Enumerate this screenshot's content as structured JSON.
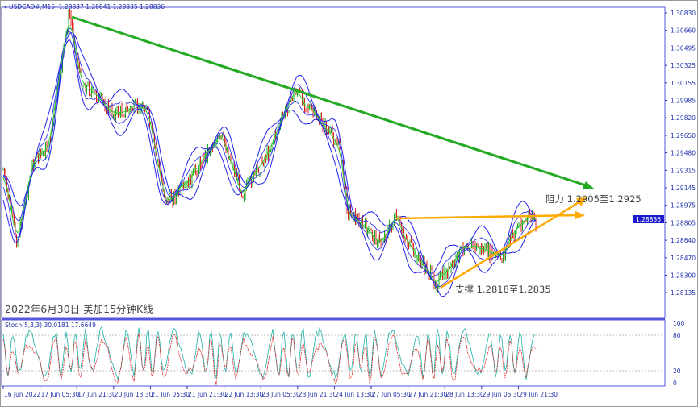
{
  "header": {
    "symbol": "USDCAD#,M15",
    "ohlc": "1.28837 1.28841 1.28835 1.28836"
  },
  "chart_data": {
    "type": "candlestick",
    "title": "2022年6月30日 美加15分钟K线",
    "symbol": "USDCAD#",
    "timeframe": "M15",
    "current_price": "1.28836",
    "y_ticks": [
      "1.30830",
      "1.30660",
      "1.30495",
      "1.30325",
      "1.30155",
      "1.29985",
      "1.29820",
      "1.29650",
      "1.29480",
      "1.29315",
      "1.29145",
      "1.28975",
      "1.28805",
      "1.28640",
      "1.28470",
      "1.28300",
      "1.28135"
    ],
    "x_ticks": [
      "16 Jun 2022",
      "17 Jun 05:30",
      "17 Jun 21:30",
      "20 Jun 13:30",
      "21 Jun 05:30",
      "21 Jun 21:30",
      "22 Jun 13:30",
      "23 Jun 05:30",
      "23 Jun 21:30",
      "24 Jun 13:30",
      "27 Jun 05:30",
      "27 Jun 21:30",
      "28 Jun 13:30",
      "29 Jun 05:30",
      "29 Jun 21:30"
    ],
    "annotations": {
      "resistance": "阻力 1.2905至1.2925",
      "support": "支撑 1.2818至1.2835"
    },
    "indicator": {
      "label": "Stoch(5,3,3) 30.0181 17.6649",
      "levels": [
        "100",
        "80",
        "20",
        "0"
      ]
    },
    "colors": {
      "up": "#22aa22",
      "down": "#dd2222",
      "bands": "#2222ee",
      "trend": "#22aa22",
      "channel": "#ffaa00",
      "axis": "#2233aa"
    }
  }
}
